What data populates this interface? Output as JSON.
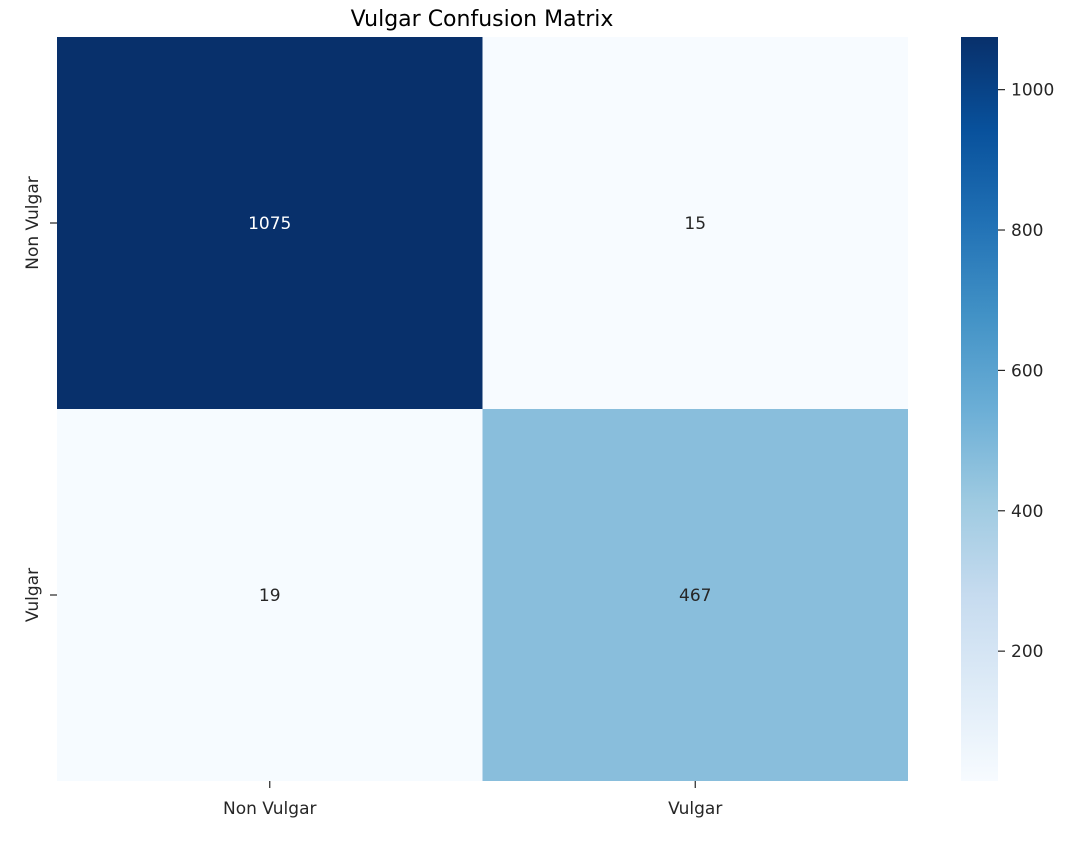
{
  "chart_data": {
    "type": "heatmap",
    "title": "Vulgar Confusion Matrix",
    "xlabel": "",
    "ylabel": "",
    "x_categories": [
      "Non Vulgar",
      "Vulgar"
    ],
    "y_categories": [
      "Non Vulgar",
      "Vulgar"
    ],
    "values": [
      [
        1075,
        15
      ],
      [
        19,
        467
      ]
    ],
    "colormap": "Blues",
    "colorbar": {
      "min": 15,
      "max": 1075,
      "ticks": [
        200,
        400,
        600,
        800,
        1000
      ]
    },
    "annotation_colors": {
      "dark_cell": "#ffffff",
      "light_cell": "#262626"
    },
    "grid": false
  }
}
